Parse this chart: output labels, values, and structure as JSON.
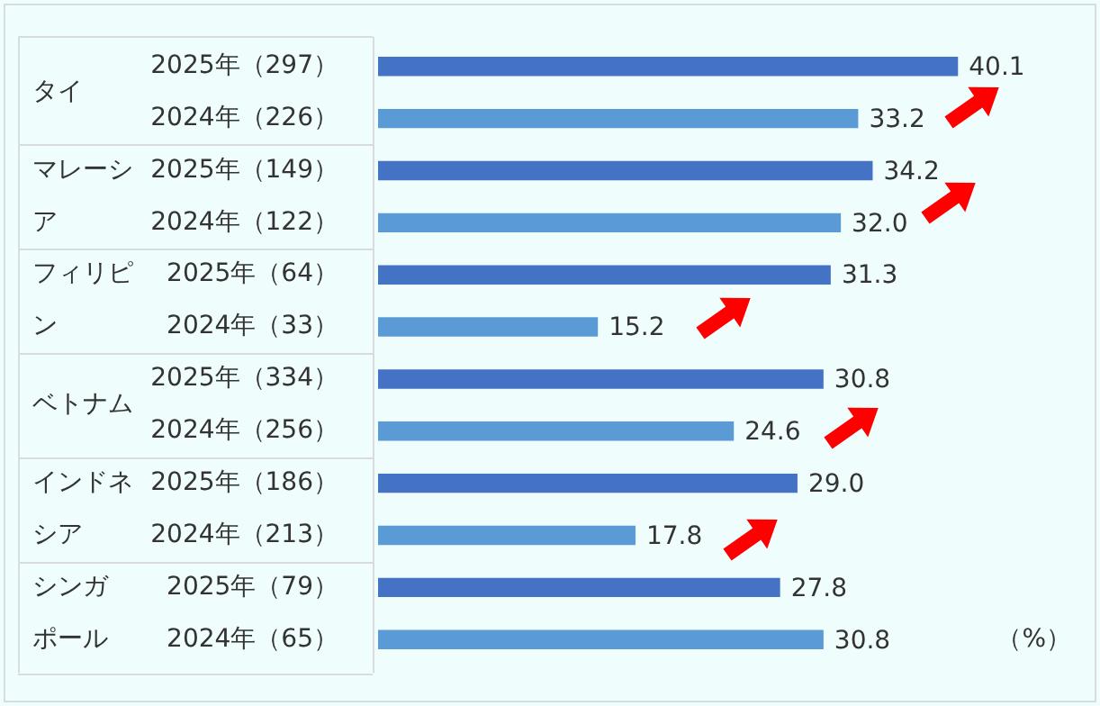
{
  "chart_data": {
    "type": "bar",
    "orientation": "horizontal",
    "tick_labels": "y",
    "value_labels": [
      "40.1",
      "33.2",
      "34.2",
      "32.0",
      "31.3",
      "15.2",
      "30.8",
      "24.6",
      "29.0",
      "17.8",
      "27.8",
      "30.8"
    ],
    "categories": [
      "2025年（297）",
      "2024年（226）",
      "2025年（149）",
      "2024年（122）",
      "2025年（64）",
      "2024年（33）",
      "2025年（334）",
      "2024年（256）",
      "2025年（186）",
      "2024年（213）",
      "2025年（79）",
      "2024年（65）"
    ],
    "values": [
      40.1,
      33.2,
      34.2,
      32.0,
      31.3,
      15.2,
      30.8,
      24.6,
      29.0,
      17.8,
      27.8,
      30.8
    ],
    "colors": [
      "#4472c4",
      "#5b9bd5",
      "#4472c4",
      "#5b9bd5",
      "#4472c4",
      "#5b9bd5",
      "#4472c4",
      "#5b9bd5",
      "#4472c4",
      "#5b9bd5",
      "#4472c4",
      "#5b9bd5"
    ],
    "annotations": [
      "タイ",
      "マレーシア",
      "フィリピン",
      "ベトナム",
      "インドネシア",
      "シンガポール",
      "（%）"
    ]
  }
}
